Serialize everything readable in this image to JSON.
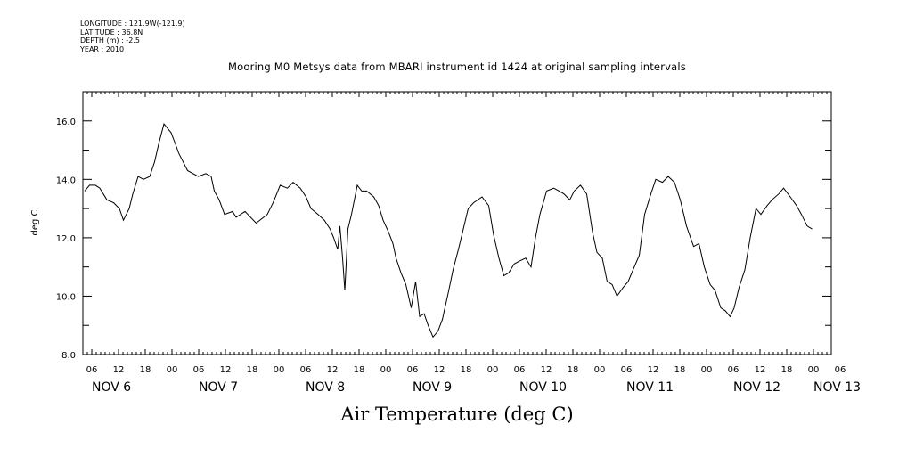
{
  "meta": {
    "longitude": "LONGITUDE : 121.9W(-121.9)",
    "latitude": "LATITUDE : 36.8N",
    "depth": "DEPTH (m) : -2.5",
    "year": "YEAR : 2010"
  },
  "chart_data": {
    "type": "line",
    "title": "Mooring M0 Metsys data from MBARI instrument id 1424 at original sampling intervals",
    "xlabel": "Air Temperature (deg C)",
    "ylabel": "deg C",
    "ylim": [
      8.0,
      17.0
    ],
    "xlim_hours": [
      4,
      172
    ],
    "y_ticks": [
      "8.0",
      "10.0",
      "12.0",
      "14.0",
      "16.0"
    ],
    "x_hour_ticks": [
      "06",
      "12",
      "18",
      "00",
      "06",
      "12",
      "18",
      "00",
      "06",
      "12",
      "18",
      "00",
      "06",
      "12",
      "18",
      "00",
      "06",
      "12",
      "18",
      "00",
      "06",
      "12",
      "18",
      "00",
      "06",
      "12",
      "18",
      "00",
      "06"
    ],
    "day_labels": [
      {
        "label": "NOV  6",
        "hour": 6
      },
      {
        "label": "NOV  7",
        "hour": 30
      },
      {
        "label": "NOV  8",
        "hour": 54
      },
      {
        "label": "NOV  9",
        "hour": 78
      },
      {
        "label": "NOV 10",
        "hour": 102
      },
      {
        "label": "NOV 11",
        "hour": 126
      },
      {
        "label": "NOV 12",
        "hour": 150
      },
      {
        "label": "NOV 13",
        "hour": 168
      }
    ],
    "grid": false,
    "series": [
      {
        "x": [
          4.4,
          5.5,
          6.8,
          7.8,
          9.4,
          10.9,
          12.2,
          13.1,
          14.4,
          15.2,
          16.4,
          17.6,
          19,
          20.1,
          21,
          22.2,
          23.8,
          24.8,
          25.5,
          27.5,
          29.9,
          31.6,
          32.8,
          33.5,
          34.6,
          35.8,
          37.6,
          38.4,
          40.4,
          42.9,
          45.4,
          46.7,
          48.3,
          49.9,
          51.2,
          52.8,
          54.1,
          55.2,
          56.8,
          58.2,
          59.5,
          60.3,
          61.2,
          61.7,
          62.3,
          62.8,
          63.5,
          64.3,
          65.6,
          66.6,
          67.7,
          69.3,
          70.4,
          71.4,
          72.6,
          73.6,
          74.3,
          75.4,
          76.5,
          77.7,
          78.7,
          79.6,
          80.6,
          81.5,
          82.6,
          83.7,
          84.7,
          86,
          87.1,
          88.3,
          89.4,
          90.5,
          91.7,
          93.6,
          95.1,
          96.2,
          97.4,
          98.5,
          99.6,
          100.8,
          102,
          103.4,
          104.6,
          105.6,
          106.6,
          108.1,
          109.7,
          110.9,
          112,
          113.3,
          114.3,
          115.7,
          117.1,
          118.4,
          119.4,
          120.6,
          121.7,
          122.8,
          123.9,
          125.3,
          126.4,
          127.5,
          128.9,
          130.1,
          131.5,
          132.6,
          134.1,
          135.4,
          136.8,
          138.1,
          139.5,
          141.1,
          142.3,
          143.5,
          144.8,
          145.9,
          147.2,
          148.2,
          149.3,
          150.2,
          151.3,
          152.6,
          153.8,
          155.1,
          156.2,
          157.6,
          158.7,
          160.2,
          161.3,
          162.8,
          164.2,
          165.3,
          166.6,
          167.7
        ],
        "y": [
          13.6,
          13.8,
          13.8,
          13.7,
          13.3,
          13.2,
          13,
          12.6,
          13,
          13.5,
          14.1,
          14,
          14.1,
          14.6,
          15.2,
          15.9,
          15.6,
          15.2,
          14.9,
          14.3,
          14.1,
          14.2,
          14.1,
          13.6,
          13.3,
          12.8,
          12.9,
          12.7,
          12.9,
          12.5,
          12.8,
          13.2,
          13.8,
          13.7,
          13.9,
          13.7,
          13.4,
          13,
          12.8,
          12.6,
          12.3,
          12,
          11.6,
          12.4,
          11.3,
          10.2,
          12.3,
          12.8,
          13.8,
          13.6,
          13.6,
          13.4,
          13.1,
          12.6,
          12.2,
          11.8,
          11.3,
          10.8,
          10.4,
          9.6,
          10.5,
          9.3,
          9.4,
          9.0,
          8.6,
          8.8,
          9.2,
          10.1,
          10.9,
          11.6,
          12.3,
          13,
          13.2,
          13.4,
          13.1,
          12.1,
          11.3,
          10.7,
          10.8,
          11.1,
          11.2,
          11.3,
          11.0,
          12.0,
          12.8,
          13.6,
          13.7,
          13.6,
          13.5,
          13.3,
          13.6,
          13.8,
          13.5,
          12.2,
          11.5,
          11.3,
          10.5,
          10.4,
          10,
          10.3,
          10.5,
          10.9,
          11.4,
          12.8,
          13.5,
          14,
          13.9,
          14.1,
          13.9,
          13.3,
          12.4,
          11.7,
          11.8,
          11,
          10.4,
          10.2,
          9.6,
          9.5,
          9.3,
          9.6,
          10.3,
          10.9,
          12,
          13,
          12.8,
          13.1,
          13.3,
          13.5,
          13.7,
          13.4,
          13.1,
          12.8,
          12.4,
          12.3
        ]
      }
    ]
  }
}
